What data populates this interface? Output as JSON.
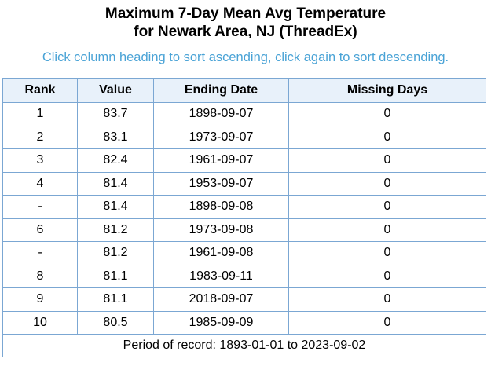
{
  "title": {
    "line1": "Maximum 7-Day Mean Avg Temperature",
    "line2": "for Newark Area, NJ (ThreadEx)"
  },
  "instructions": "Click column heading to sort ascending, click again to sort descending.",
  "colors": {
    "instructions_text": "#4aa3d6",
    "table_border": "#7ba7d3",
    "header_background": "#e8f1fa"
  },
  "table": {
    "headers": [
      "Rank",
      "Value",
      "Ending Date",
      "Missing Days"
    ],
    "rows": [
      [
        "1",
        "83.7",
        "1898-09-07",
        "0"
      ],
      [
        "2",
        "83.1",
        "1973-09-07",
        "0"
      ],
      [
        "3",
        "82.4",
        "1961-09-07",
        "0"
      ],
      [
        "4",
        "81.4",
        "1953-09-07",
        "0"
      ],
      [
        "-",
        "81.4",
        "1898-09-08",
        "0"
      ],
      [
        "6",
        "81.2",
        "1973-09-08",
        "0"
      ],
      [
        "-",
        "81.2",
        "1961-09-08",
        "0"
      ],
      [
        "8",
        "81.1",
        "1983-09-11",
        "0"
      ],
      [
        "9",
        "81.1",
        "2018-09-07",
        "0"
      ],
      [
        "10",
        "80.5",
        "1985-09-09",
        "0"
      ]
    ],
    "footer": "Period of record: 1893-01-01 to 2023-09-02"
  }
}
